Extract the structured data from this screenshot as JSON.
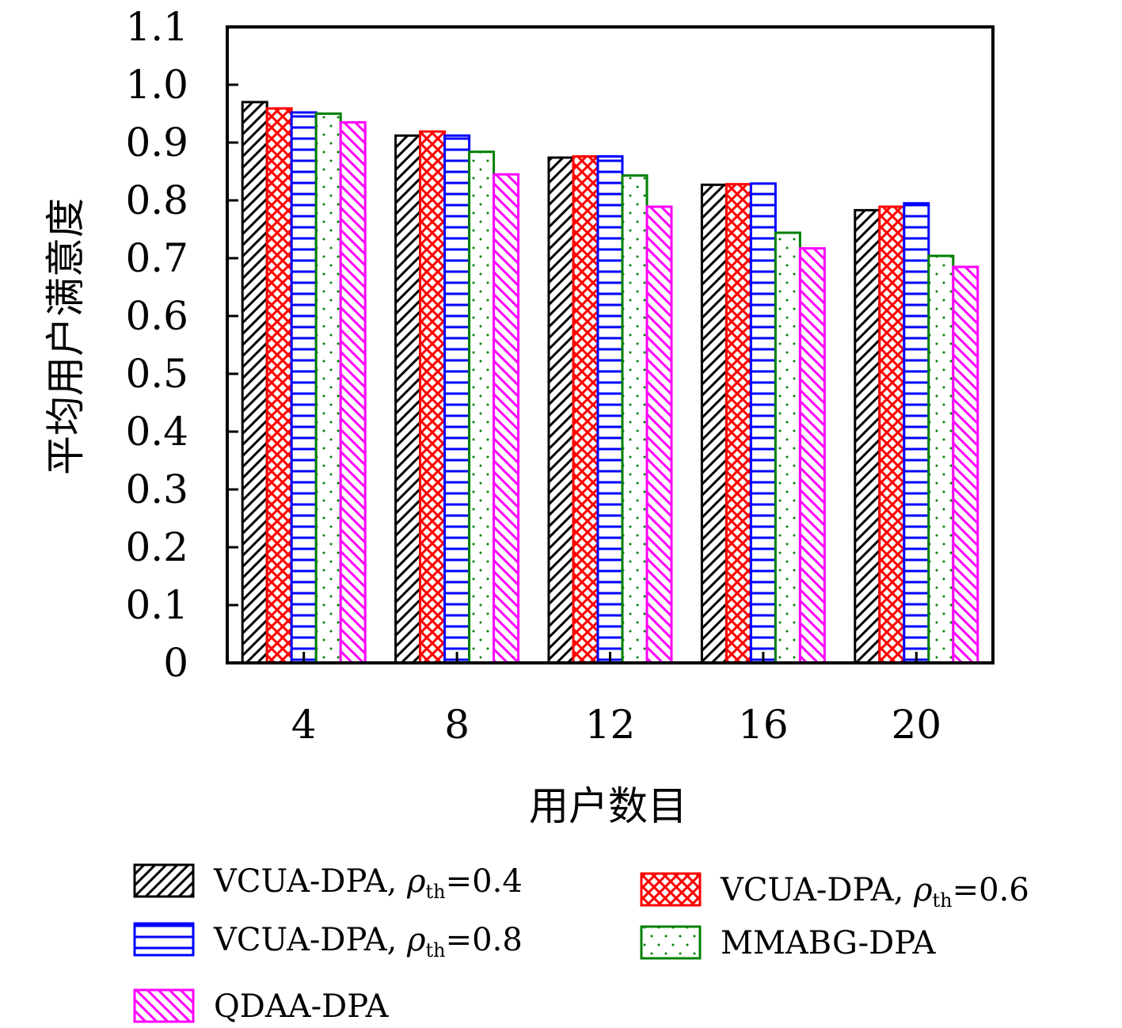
{
  "chart_data": {
    "type": "bar",
    "title": "",
    "xlabel": "用户数目",
    "ylabel": "平均用户满意度",
    "categories": [
      "4",
      "8",
      "12",
      "16",
      "20"
    ],
    "ylim": [
      0,
      1.1
    ],
    "yticks": [
      "0",
      "0.1",
      "0.2",
      "0.3",
      "0.4",
      "0.5",
      "0.6",
      "0.7",
      "0.8",
      "0.9",
      "1.0",
      "1.1"
    ],
    "grid": false,
    "legend_position": "bottom",
    "series": [
      {
        "name": "VCUA-DPA, ρth=0.4",
        "label_main": "VCUA-DPA, ",
        "label_rho": "ρ",
        "label_sub": "th",
        "label_tail": "=0.4",
        "values": [
          0.97,
          0.912,
          0.874,
          0.827,
          0.783
        ],
        "color": "#000000",
        "pattern": "diagonal-forward"
      },
      {
        "name": "VCUA-DPA, ρth=0.6",
        "label_main": "VCUA-DPA, ",
        "label_rho": "ρ",
        "label_sub": "th",
        "label_tail": "=0.6",
        "values": [
          0.959,
          0.919,
          0.876,
          0.828,
          0.789
        ],
        "color": "#ff0000",
        "pattern": "crosshatch"
      },
      {
        "name": "VCUA-DPA, ρth=0.8",
        "label_main": "VCUA-DPA, ",
        "label_rho": "ρ",
        "label_sub": "th",
        "label_tail": "=0.8",
        "values": [
          0.952,
          0.912,
          0.876,
          0.829,
          0.795
        ],
        "color": "#0000ff",
        "pattern": "horizontal"
      },
      {
        "name": "MMABG-DPA",
        "label_main": "MMABG-DPA",
        "label_rho": "",
        "label_sub": "",
        "label_tail": "",
        "values": [
          0.95,
          0.884,
          0.843,
          0.744,
          0.704
        ],
        "color": "#008000",
        "pattern": "dots"
      },
      {
        "name": "QDAA-DPA",
        "label_main": "QDAA-DPA",
        "label_rho": "",
        "label_sub": "",
        "label_tail": "",
        "values": [
          0.935,
          0.845,
          0.789,
          0.717,
          0.685
        ],
        "color": "#ff00ff",
        "pattern": "diagonal-back"
      }
    ]
  }
}
